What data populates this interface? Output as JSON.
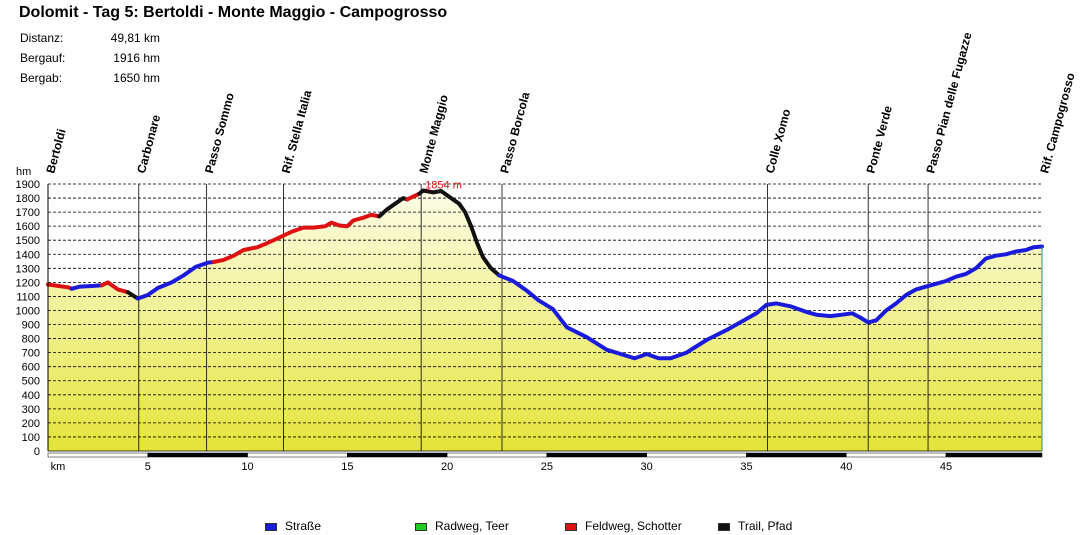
{
  "header": {
    "title": "Dolomit - Tag 5: Bertoldi - Monte Maggio - Campogrosso",
    "stats": [
      {
        "label": "Distanz:",
        "value": "49,81 km"
      },
      {
        "label": "Bergauf:",
        "value": "1916 hm"
      },
      {
        "label": "Bergab:",
        "value": "1650 hm"
      }
    ]
  },
  "legend": [
    {
      "label": "Straße",
      "color": "#1a1adc"
    },
    {
      "label": "Radweg, Teer",
      "color": "#22cc22"
    },
    {
      "label": "Feldweg, Schotter",
      "color": "#dd1111"
    },
    {
      "label": "Trail, Pfad",
      "color": "#111111"
    }
  ],
  "chart_data": {
    "type": "area",
    "xlabel": "km",
    "ylabel": "hm",
    "xlim": [
      0,
      49.81
    ],
    "ylim": [
      0,
      1900
    ],
    "yticks": [
      0,
      100,
      200,
      300,
      400,
      500,
      600,
      700,
      800,
      900,
      1000,
      1100,
      1200,
      1300,
      1400,
      1500,
      1600,
      1700,
      1800,
      1900
    ],
    "xticks": [
      5,
      10,
      15,
      20,
      25,
      30,
      35,
      40,
      45
    ],
    "grid": true,
    "fill_color": "#f3f3a8",
    "max_label": "1854 m",
    "max_point": {
      "x": 18.7,
      "y": 1854
    },
    "waypoints": [
      {
        "name": "Bertoldi",
        "x": 0
      },
      {
        "name": "Carbonare",
        "x": 4.55
      },
      {
        "name": "Passo Sommo",
        "x": 7.95
      },
      {
        "name": "Rif. Stella Italia",
        "x": 11.8
      },
      {
        "name": "Monte Maggio",
        "x": 18.7
      },
      {
        "name": "Passo  Borcola",
        "x": 22.75
      },
      {
        "name": "Colle Xomo",
        "x": 36.05
      },
      {
        "name": "Ponte Verde",
        "x": 41.1
      },
      {
        "name": "Passo Pian delle  Fugazze",
        "x": 44.1
      },
      {
        "name": "Rif. Campogrosso",
        "x": 49.81
      }
    ],
    "series": [
      {
        "surface": "Feldweg, Schotter",
        "points": [
          [
            0,
            1185
          ],
          [
            0.5,
            1175
          ],
          [
            1.0,
            1165
          ],
          [
            1.2,
            1155
          ]
        ]
      },
      {
        "surface": "Straße",
        "points": [
          [
            1.2,
            1155
          ],
          [
            1.6,
            1170
          ],
          [
            2.3,
            1175
          ],
          [
            2.7,
            1180
          ]
        ]
      },
      {
        "surface": "Feldweg, Schotter",
        "points": [
          [
            2.7,
            1180
          ],
          [
            3.0,
            1200
          ],
          [
            3.5,
            1150
          ],
          [
            4.0,
            1130
          ]
        ]
      },
      {
        "surface": "Trail, Pfad",
        "points": [
          [
            4.0,
            1130
          ],
          [
            4.5,
            1085
          ]
        ]
      },
      {
        "surface": "Straße",
        "points": [
          [
            4.5,
            1085
          ],
          [
            5.0,
            1110
          ],
          [
            5.5,
            1160
          ],
          [
            6.2,
            1200
          ],
          [
            6.8,
            1250
          ],
          [
            7.4,
            1310
          ],
          [
            8.0,
            1340
          ],
          [
            8.3,
            1345
          ]
        ]
      },
      {
        "surface": "Feldweg, Schotter",
        "points": [
          [
            8.3,
            1345
          ],
          [
            8.8,
            1360
          ],
          [
            9.3,
            1390
          ],
          [
            9.8,
            1430
          ],
          [
            10.5,
            1450
          ],
          [
            11.0,
            1480
          ],
          [
            11.6,
            1520
          ],
          [
            12.2,
            1560
          ],
          [
            12.8,
            1590
          ],
          [
            13.3,
            1590
          ],
          [
            13.9,
            1600
          ],
          [
            14.2,
            1625
          ],
          [
            14.6,
            1605
          ],
          [
            15.0,
            1600
          ],
          [
            15.3,
            1640
          ],
          [
            15.8,
            1660
          ],
          [
            16.2,
            1680
          ],
          [
            16.6,
            1670
          ]
        ]
      },
      {
        "surface": "Trail, Pfad",
        "points": [
          [
            16.6,
            1670
          ],
          [
            17.0,
            1720
          ],
          [
            17.4,
            1760
          ],
          [
            17.8,
            1800
          ],
          [
            18.0,
            1790
          ]
        ]
      },
      {
        "surface": "Feldweg, Schotter",
        "points": [
          [
            18.0,
            1790
          ],
          [
            18.3,
            1810
          ],
          [
            18.6,
            1830
          ]
        ]
      },
      {
        "surface": "Trail, Pfad",
        "points": [
          [
            18.6,
            1830
          ],
          [
            18.8,
            1854
          ],
          [
            19.3,
            1840
          ],
          [
            19.7,
            1850
          ],
          [
            20.2,
            1800
          ],
          [
            20.6,
            1760
          ],
          [
            20.9,
            1700
          ],
          [
            21.2,
            1600
          ],
          [
            21.5,
            1480
          ],
          [
            21.8,
            1380
          ],
          [
            22.2,
            1300
          ],
          [
            22.6,
            1250
          ]
        ]
      },
      {
        "surface": "Straße",
        "points": [
          [
            22.6,
            1250
          ],
          [
            23.3,
            1210
          ],
          [
            24.0,
            1140
          ],
          [
            24.6,
            1070
          ],
          [
            25.3,
            1010
          ],
          [
            26.0,
            880
          ],
          [
            27.0,
            810
          ],
          [
            28.0,
            720
          ],
          [
            28.7,
            690
          ],
          [
            29.4,
            660
          ],
          [
            30.0,
            690
          ],
          [
            30.6,
            660
          ],
          [
            31.2,
            660
          ],
          [
            32.0,
            700
          ],
          [
            33.0,
            790
          ],
          [
            34.0,
            860
          ],
          [
            35.0,
            940
          ],
          [
            35.5,
            980
          ],
          [
            36.0,
            1040
          ],
          [
            36.5,
            1050
          ],
          [
            37.2,
            1030
          ],
          [
            38.0,
            990
          ],
          [
            38.5,
            970
          ],
          [
            39.2,
            960
          ],
          [
            39.8,
            970
          ],
          [
            40.3,
            980
          ],
          [
            40.7,
            950
          ],
          [
            41.1,
            915
          ],
          [
            41.5,
            930
          ],
          [
            42.0,
            1000
          ],
          [
            42.5,
            1050
          ],
          [
            43.0,
            1110
          ],
          [
            43.5,
            1150
          ],
          [
            44.0,
            1170
          ],
          [
            44.5,
            1190
          ],
          [
            45.0,
            1210
          ],
          [
            45.5,
            1240
          ],
          [
            46.0,
            1260
          ],
          [
            46.5,
            1300
          ],
          [
            47.0,
            1370
          ],
          [
            47.5,
            1390
          ],
          [
            48.0,
            1400
          ],
          [
            48.5,
            1420
          ],
          [
            49.0,
            1430
          ],
          [
            49.4,
            1450
          ],
          [
            49.81,
            1455
          ]
        ]
      }
    ]
  }
}
